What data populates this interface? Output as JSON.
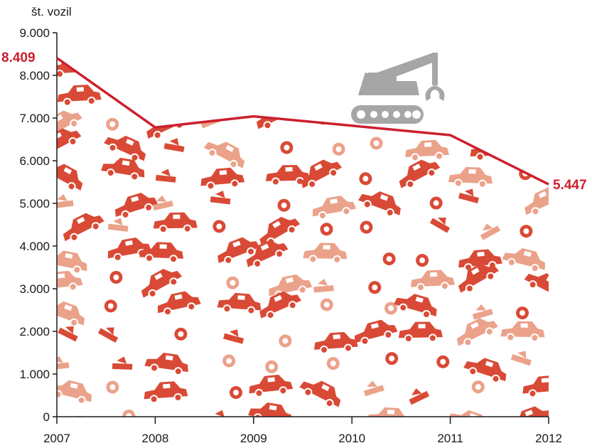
{
  "chart_data": {
    "type": "area",
    "ylabel": "št. vozil",
    "ylim": [
      0,
      9000
    ],
    "y_ticks": [
      0,
      1000,
      2000,
      3000,
      4000,
      5000,
      6000,
      7000,
      8000,
      9000
    ],
    "y_tick_labels": [
      "0",
      "1.000",
      "2.000",
      "3.000",
      "4.000",
      "5.000",
      "6.000",
      "7.000",
      "8.000",
      "9.000"
    ],
    "x": [
      "2007",
      "2008",
      "2009",
      "2010",
      "2011",
      "2012"
    ],
    "values": [
      8409,
      6780,
      7040,
      6820,
      6600,
      5447
    ],
    "data_labels": [
      {
        "index": 0,
        "text": "8.409"
      },
      {
        "index": 5,
        "text": "5.447"
      }
    ],
    "grid": false,
    "colors": {
      "line": "#cc1f2d",
      "fill_dark": "#d94a36",
      "fill_light": "#eba28a",
      "icon": "#a6a6a6"
    },
    "decorations": [
      "scrapped-car-pile-illustration",
      "excavator-claw-icon"
    ]
  }
}
